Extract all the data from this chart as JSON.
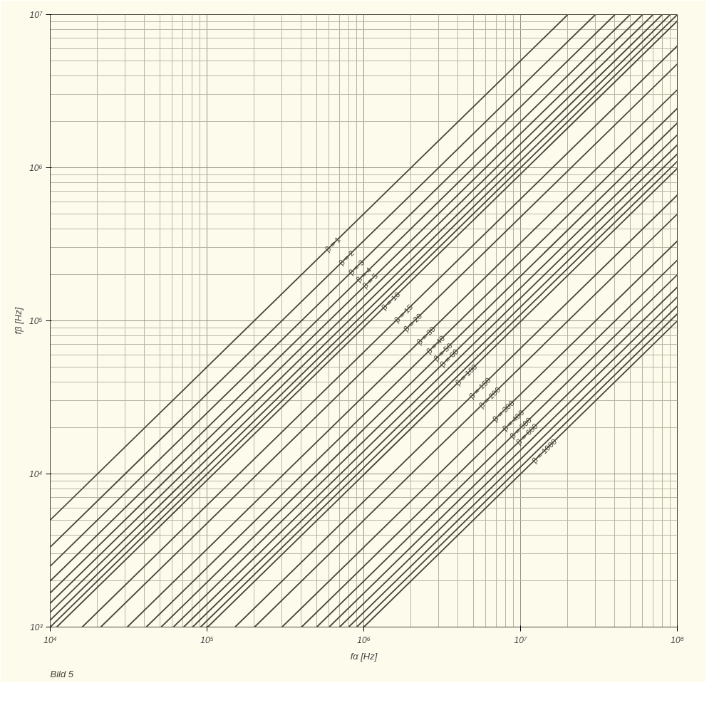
{
  "chart_data": {
    "type": "line",
    "xlabel": "fα [Hz]",
    "ylabel": "fβ [Hz]",
    "log": "xy",
    "grid": true,
    "xlim": [
      10000,
      100000000
    ],
    "ylim": [
      1000,
      10000000
    ],
    "xticks": [
      {
        "value": 10000,
        "label": "10⁴"
      },
      {
        "value": 100000,
        "label": "10⁵"
      },
      {
        "value": 1000000,
        "label": "10⁶"
      },
      {
        "value": 10000000,
        "label": "10⁷"
      },
      {
        "value": 100000000,
        "label": "10⁸"
      }
    ],
    "yticks": [
      {
        "value": 1000,
        "label": "10³"
      },
      {
        "value": 10000,
        "label": "10⁴"
      },
      {
        "value": 100000,
        "label": "10⁵"
      },
      {
        "value": 1000000,
        "label": "10⁶"
      },
      {
        "value": 10000000,
        "label": "10⁷"
      }
    ],
    "annotations": [
      "Bild 5"
    ],
    "series": [
      {
        "name": "β = 1",
        "color": "#48443a",
        "x": [
          10000,
          20000000
        ],
        "values": [
          5000,
          10000000
        ]
      },
      {
        "name": "β = 2",
        "color": "#48443a",
        "x": [
          10000,
          30000000
        ],
        "values": [
          3330,
          10000000
        ]
      },
      {
        "name": "β = 3",
        "color": "#48443a",
        "x": [
          10000,
          40000000
        ],
        "values": [
          2500,
          10000000
        ]
      },
      {
        "name": "β = 4",
        "color": "#48443a",
        "x": [
          10000,
          50000000
        ],
        "values": [
          2000,
          10000000
        ]
      },
      {
        "name": "β = 5",
        "color": "#48443a",
        "x": [
          10000,
          60000000
        ],
        "values": [
          1670,
          10000000
        ]
      },
      {
        "color": "#48443a",
        "x": [
          10000,
          70000000
        ],
        "values": [
          1430,
          10000000
        ]
      },
      {
        "color": "#48443a",
        "x": [
          10000,
          80000000
        ],
        "values": [
          1250,
          10000000
        ]
      },
      {
        "color": "#48443a",
        "x": [
          10000,
          90000000
        ],
        "values": [
          1110,
          10000000
        ]
      },
      {
        "color": "#48443a",
        "x": [
          10000,
          100000000
        ],
        "values": [
          1000,
          10000000
        ]
      },
      {
        "name": "β = 10",
        "color": "#48443a",
        "x": [
          11000,
          100000000
        ],
        "values": [
          1000,
          9090000
        ]
      },
      {
        "name": "β = 15",
        "color": "#48443a",
        "x": [
          16000,
          100000000
        ],
        "values": [
          1000,
          6250000
        ]
      },
      {
        "name": "β = 20",
        "color": "#48443a",
        "x": [
          21000,
          100000000
        ],
        "values": [
          1000,
          4760000
        ]
      },
      {
        "name": "β = 30",
        "color": "#48443a",
        "x": [
          31000,
          100000000
        ],
        "values": [
          1000,
          3230000
        ]
      },
      {
        "name": "β = 40",
        "color": "#48443a",
        "x": [
          41000,
          100000000
        ],
        "values": [
          1000,
          2440000
        ]
      },
      {
        "name": "β = 50",
        "color": "#48443a",
        "x": [
          51000,
          100000000
        ],
        "values": [
          1000,
          1960000
        ]
      },
      {
        "name": "β = 60",
        "color": "#48443a",
        "x": [
          61000,
          100000000
        ],
        "values": [
          1000,
          1640000
        ]
      },
      {
        "color": "#48443a",
        "x": [
          71000,
          100000000
        ],
        "values": [
          1000,
          1410000
        ]
      },
      {
        "color": "#48443a",
        "x": [
          81000,
          100000000
        ],
        "values": [
          1000,
          1230000
        ]
      },
      {
        "color": "#48443a",
        "x": [
          91000,
          100000000
        ],
        "values": [
          1000,
          1100000
        ]
      },
      {
        "name": "β = 100",
        "color": "#48443a",
        "x": [
          101000,
          100000000
        ],
        "values": [
          1000,
          990000
        ]
      },
      {
        "name": "β = 150",
        "color": "#48443a",
        "x": [
          151000,
          100000000
        ],
        "values": [
          1000,
          662000
        ]
      },
      {
        "name": "β = 200",
        "color": "#48443a",
        "x": [
          201000,
          100000000
        ],
        "values": [
          1000,
          498000
        ]
      },
      {
        "name": "β = 300",
        "color": "#48443a",
        "x": [
          301000,
          100000000
        ],
        "values": [
          1000,
          332000
        ]
      },
      {
        "name": "β = 400",
        "color": "#48443a",
        "x": [
          401000,
          100000000
        ],
        "values": [
          1000,
          249000
        ]
      },
      {
        "name": "β = 500",
        "color": "#48443a",
        "x": [
          501000,
          100000000
        ],
        "values": [
          1000,
          200000
        ]
      },
      {
        "name": "β = 600",
        "color": "#48443a",
        "x": [
          601000,
          100000000
        ],
        "values": [
          1000,
          166000
        ]
      },
      {
        "color": "#48443a",
        "x": [
          701000,
          100000000
        ],
        "values": [
          1000,
          143000
        ]
      },
      {
        "color": "#48443a",
        "x": [
          801000,
          100000000
        ],
        "values": [
          1000,
          125000
        ]
      },
      {
        "color": "#48443a",
        "x": [
          901000,
          100000000
        ],
        "values": [
          1000,
          111000
        ]
      },
      {
        "name": "β = 1000",
        "color": "#48443a",
        "x": [
          1001000,
          100000000
        ],
        "values": [
          1000,
          99900
        ]
      }
    ]
  }
}
